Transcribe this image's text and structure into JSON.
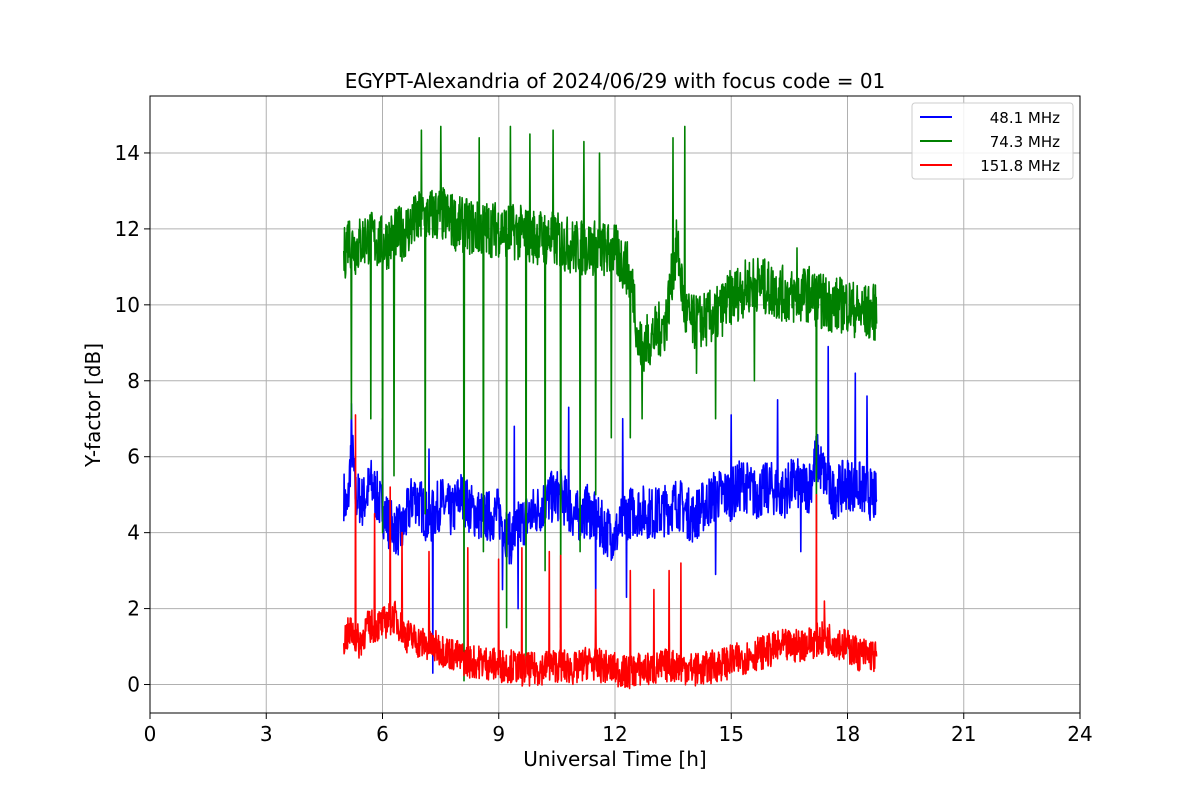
{
  "chart_data": {
    "type": "line",
    "title": "EGYPT-Alexandria of 2024/06/29 with focus code = 01",
    "xlabel": "Universal Time [h]",
    "ylabel": "Y-factor [dB]",
    "xlim": [
      0,
      24
    ],
    "ylim": [
      -0.75,
      15.5
    ],
    "xticks": [
      0,
      3,
      6,
      9,
      12,
      15,
      18,
      21,
      24
    ],
    "yticks": [
      0,
      2,
      4,
      6,
      8,
      10,
      12,
      14
    ],
    "grid": true,
    "legend_position": "top-right",
    "series": [
      {
        "name": "48.1 MHz",
        "color": "#0000ff",
        "x": [
          5.0,
          5.1,
          5.2,
          5.3,
          5.5,
          5.7,
          6.0,
          6.2,
          6.5,
          6.8,
          7.0,
          7.2,
          7.5,
          7.8,
          8.0,
          8.3,
          8.6,
          9.0,
          9.3,
          9.6,
          10.0,
          10.3,
          10.6,
          11.0,
          11.3,
          11.6,
          12.0,
          12.3,
          12.6,
          13.0,
          13.3,
          13.6,
          14.0,
          14.3,
          14.6,
          15.0,
          15.3,
          15.6,
          16.0,
          16.3,
          16.6,
          17.0,
          17.2,
          17.4,
          17.6,
          18.0,
          18.3,
          18.6,
          18.75
        ],
        "values": [
          5.0,
          4.5,
          6.5,
          5.0,
          4.8,
          5.3,
          4.6,
          4.2,
          4.0,
          5.0,
          4.7,
          4.3,
          4.8,
          4.5,
          5.0,
          4.6,
          4.4,
          4.5,
          3.8,
          4.3,
          4.6,
          4.9,
          5.0,
          4.4,
          4.6,
          4.2,
          3.9,
          4.5,
          4.6,
          4.5,
          4.6,
          4.8,
          4.4,
          4.7,
          5.0,
          5.0,
          5.3,
          5.0,
          5.2,
          5.0,
          5.3,
          5.2,
          6.0,
          5.5,
          5.0,
          5.3,
          5.2,
          5.0,
          4.9
        ],
        "noise_amplitude": 1.4,
        "dips": [
          [
            7.3,
            0.3
          ],
          [
            9.1,
            2.5
          ],
          [
            9.5,
            2.0
          ],
          [
            11.5,
            2.0
          ],
          [
            12.3,
            2.3
          ],
          [
            14.6,
            2.9
          ],
          [
            16.8,
            3.5
          ]
        ],
        "spikes": [
          [
            5.2,
            7.4
          ],
          [
            6.0,
            7.0
          ],
          [
            7.2,
            6.2
          ],
          [
            9.4,
            6.8
          ],
          [
            10.8,
            7.3
          ],
          [
            12.2,
            7.0
          ],
          [
            15.0,
            7.1
          ],
          [
            16.2,
            7.5
          ],
          [
            17.5,
            8.9
          ],
          [
            18.2,
            8.2
          ],
          [
            18.5,
            7.6
          ]
        ]
      },
      {
        "name": "74.3 MHz",
        "color": "#008000",
        "x": [
          5.0,
          5.1,
          5.3,
          5.6,
          6.0,
          6.5,
          7.0,
          7.5,
          8.0,
          8.5,
          9.0,
          9.5,
          10.0,
          10.5,
          11.0,
          11.5,
          12.0,
          12.3,
          12.5,
          12.6,
          12.8,
          13.0,
          13.3,
          13.6,
          13.8,
          14.0,
          14.3,
          14.6,
          15.0,
          15.3,
          15.6,
          16.0,
          16.3,
          16.6,
          17.0,
          17.3,
          17.6,
          18.0,
          18.3,
          18.6,
          18.75
        ],
        "values": [
          11.2,
          11.8,
          11.5,
          11.8,
          11.6,
          11.9,
          12.3,
          12.4,
          12.1,
          12.0,
          12.0,
          11.9,
          11.8,
          11.7,
          11.5,
          11.5,
          11.4,
          11.0,
          10.2,
          8.9,
          9.0,
          9.2,
          9.5,
          11.6,
          9.8,
          9.5,
          9.6,
          9.7,
          10.2,
          10.4,
          10.6,
          10.4,
          10.3,
          10.2,
          10.3,
          10.1,
          10.0,
          10.0,
          9.8,
          9.8,
          9.8
        ],
        "noise_amplitude": 1.5,
        "dips": [
          [
            5.2,
            7.0
          ],
          [
            5.7,
            7.0
          ],
          [
            6.0,
            4.0
          ],
          [
            6.3,
            5.5
          ],
          [
            7.1,
            4.5
          ],
          [
            8.1,
            0.1
          ],
          [
            8.6,
            3.5
          ],
          [
            9.2,
            1.5
          ],
          [
            9.7,
            0.5
          ],
          [
            10.2,
            3.0
          ],
          [
            10.6,
            1.5
          ],
          [
            11.1,
            3.5
          ],
          [
            11.5,
            5.0
          ],
          [
            11.9,
            6.5
          ],
          [
            12.4,
            6.5
          ],
          [
            12.7,
            7.0
          ],
          [
            14.1,
            8.2
          ],
          [
            14.6,
            7.0
          ],
          [
            15.6,
            8.0
          ],
          [
            17.2,
            4.0
          ]
        ],
        "spikes": [
          [
            7.0,
            14.6
          ],
          [
            7.5,
            14.7
          ],
          [
            8.5,
            14.4
          ],
          [
            9.3,
            14.7
          ],
          [
            9.8,
            14.5
          ],
          [
            10.4,
            14.6
          ],
          [
            11.2,
            14.3
          ],
          [
            11.6,
            14.0
          ],
          [
            13.5,
            14.4
          ],
          [
            13.8,
            14.7
          ],
          [
            16.7,
            11.5
          ]
        ]
      },
      {
        "name": "151.8 MHz",
        "color": "#ff0000",
        "x": [
          5.0,
          5.2,
          5.4,
          5.6,
          6.0,
          6.3,
          6.6,
          7.0,
          7.3,
          7.6,
          8.0,
          8.3,
          8.6,
          9.0,
          9.3,
          9.6,
          10.0,
          10.3,
          10.6,
          11.0,
          11.3,
          11.6,
          12.0,
          12.3,
          12.6,
          13.0,
          13.3,
          13.6,
          14.0,
          14.3,
          14.6,
          15.0,
          15.3,
          15.6,
          16.0,
          16.3,
          16.6,
          17.0,
          17.3,
          17.6,
          18.0,
          18.3,
          18.6,
          18.75
        ],
        "values": [
          1.2,
          1.4,
          1.1,
          1.5,
          1.6,
          1.8,
          1.3,
          1.1,
          1.0,
          0.9,
          0.7,
          0.6,
          0.6,
          0.5,
          0.5,
          0.4,
          0.4,
          0.5,
          0.5,
          0.4,
          0.6,
          0.5,
          0.4,
          0.3,
          0.4,
          0.4,
          0.5,
          0.5,
          0.4,
          0.4,
          0.5,
          0.6,
          0.7,
          0.8,
          0.9,
          1.0,
          1.0,
          1.1,
          1.2,
          1.2,
          1.0,
          0.8,
          0.8,
          0.7
        ],
        "noise_amplitude": 0.9,
        "dips": [],
        "spikes": [
          [
            5.3,
            7.1
          ],
          [
            5.8,
            4.5
          ],
          [
            6.2,
            5.2
          ],
          [
            6.5,
            4.0
          ],
          [
            7.2,
            3.5
          ],
          [
            8.2,
            3.6
          ],
          [
            9.0,
            3.3
          ],
          [
            9.6,
            3.6
          ],
          [
            10.3,
            3.5
          ],
          [
            10.6,
            3.4
          ],
          [
            11.5,
            2.5
          ],
          [
            12.4,
            3.0
          ],
          [
            13.0,
            2.5
          ],
          [
            13.4,
            3.0
          ],
          [
            13.7,
            3.2
          ],
          [
            17.2,
            5.0
          ],
          [
            17.4,
            2.2
          ]
        ]
      }
    ]
  }
}
